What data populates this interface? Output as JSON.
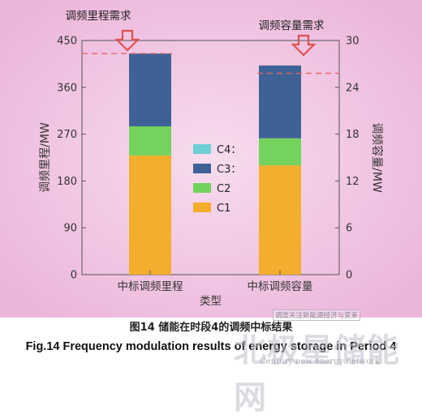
{
  "figure": {
    "caption_cn": "图14  储能在时段4的调频中标结果",
    "caption_en": "Fig.14  Frequency modulation results of energy storage in Period 4",
    "watermark_main": "北极星储能网",
    "watermark_sub": "Century new energy network",
    "watermark_top": "调度关注新能源经济与变革"
  },
  "chart_data": {
    "type": "bar",
    "stacked": true,
    "background": "#f2c6e4",
    "xlabel": "类型",
    "categories": [
      "中标调频里程",
      "中标调频容量"
    ],
    "ylabel_left": "调频里程/MW",
    "ylabel_right": "调频容量/MW",
    "ylim_left": [
      0,
      450
    ],
    "yticks_left": [
      "0",
      "90",
      "180",
      "270",
      "360",
      "450"
    ],
    "ylim_right": [
      0,
      30
    ],
    "yticks_right": [
      "0",
      "6",
      "12",
      "18",
      "24",
      "30"
    ],
    "legend_position": "middle-left",
    "series": [
      {
        "name": "C1",
        "color": "#f2ae2c",
        "values": [
          229,
          210
        ]
      },
      {
        "name": "C2",
        "color": "#73d35c",
        "values": [
          56,
          52
        ]
      },
      {
        "name": "C3：",
        "color": "#3f6296",
        "values": [
          140,
          140
        ]
      },
      {
        "name": "C4：",
        "color": "#6dcfd3",
        "values": [
          0,
          0
        ]
      }
    ],
    "demand_lines": [
      {
        "label": "调频里程需求",
        "axis": "left",
        "value": 425,
        "color": "#e06565"
      },
      {
        "label": "调频容量需求",
        "axis": "right",
        "value": 25.8,
        "color": "#e06565"
      }
    ]
  }
}
